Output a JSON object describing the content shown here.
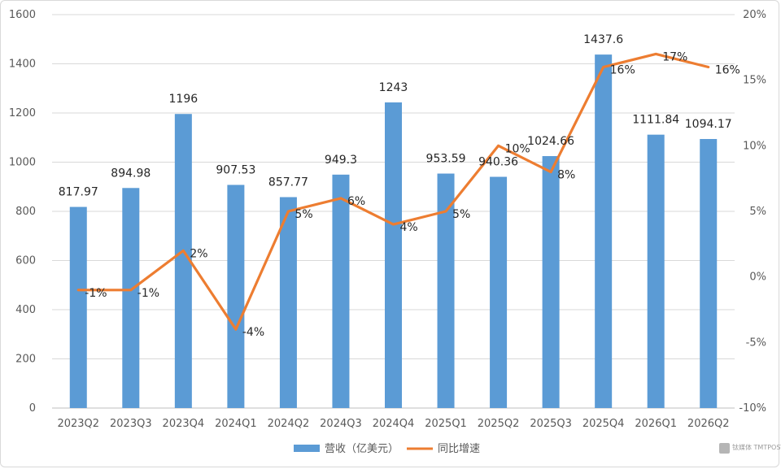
{
  "chart_data": {
    "type": "bar",
    "categories": [
      "2023Q2",
      "2023Q3",
      "2023Q4",
      "2024Q1",
      "2024Q2",
      "2024Q3",
      "2024Q4",
      "2025Q1",
      "2025Q2",
      "2025Q3",
      "2025Q4",
      "2026Q1",
      "2026Q2"
    ],
    "series": [
      {
        "name": "营收（亿美元）",
        "type": "bar",
        "axis": "left",
        "color": "#5b9bd5",
        "values": [
          817.97,
          894.98,
          1196,
          907.53,
          857.77,
          949.3,
          1243,
          953.59,
          940.36,
          1024.66,
          1437.6,
          1111.84,
          1094.17
        ],
        "labels": [
          "817.97",
          "894.98",
          "1196",
          "907.53",
          "857.77",
          "949.3",
          "1243",
          "953.59",
          "940.36",
          "1024.66",
          "1437.6",
          "1111.84",
          "1094.17"
        ]
      },
      {
        "name": "同比增速",
        "type": "line",
        "axis": "right",
        "color": "#ed7d31",
        "values": [
          -1,
          -1,
          2,
          -4,
          5,
          6,
          4,
          5,
          10,
          8,
          16,
          17,
          16
        ],
        "labels": [
          "-1%",
          "-1%",
          "2%",
          "-4%",
          "5%",
          "6%",
          "4%",
          "5%",
          "10%",
          "8%",
          "16%",
          "17%",
          "16%"
        ]
      }
    ],
    "ylim_left": [
      0,
      1600
    ],
    "yticks_left": [
      "0",
      "200",
      "400",
      "600",
      "800",
      "1000",
      "1200",
      "1400",
      "1600"
    ],
    "ylim_right": [
      -10,
      20
    ],
    "yticks_right": [
      "-10%",
      "-5%",
      "0%",
      "5%",
      "10%",
      "15%",
      "20%"
    ],
    "grid": true,
    "legend_position": "bottom",
    "watermark": "钛媒体 TMTPOST"
  }
}
